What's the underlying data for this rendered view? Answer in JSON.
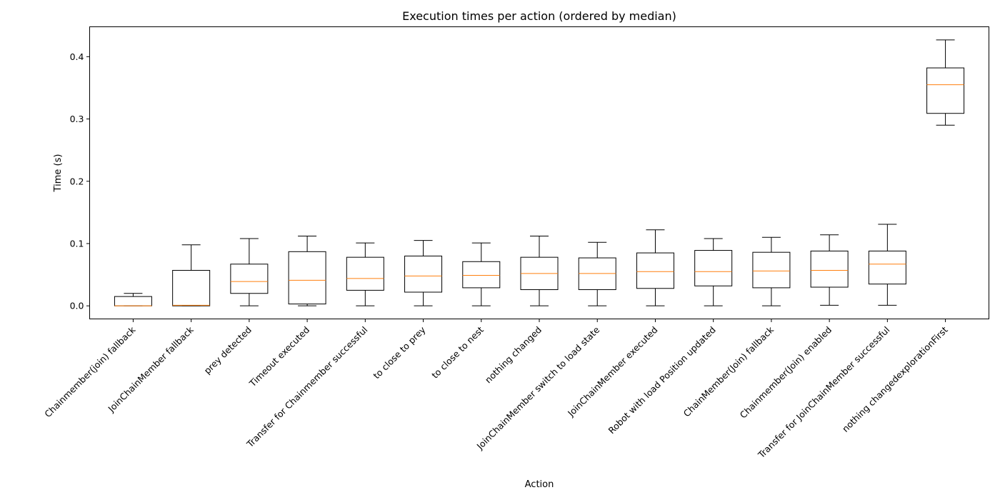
{
  "chart_data": {
    "type": "box",
    "title": "Execution times per action (ordered by median)",
    "xlabel": "Action",
    "ylabel": "Time (s)",
    "ylim": [
      -0.021,
      0.448
    ],
    "yticks": [
      "0.0",
      "0.1",
      "0.2",
      "0.3",
      "0.4"
    ],
    "grid": false,
    "colors": {
      "box": "#000000",
      "median": "#ff7f0e",
      "background": "#ffffff"
    },
    "categories": [
      "Chainmember(join) fallback",
      "JoinChainMember fallback",
      "prey detected",
      "Timeout executed",
      "Transfer for Chainmember successful",
      "to close to prey",
      "to close to nest",
      "nothing changed",
      "JoinChainMember switch to load state",
      "JoinChainMember executed",
      "Robot with load Position updated",
      "ChainMember(Join) fallback",
      "Chainmember(Join) enabled",
      "Transfer for JoinChainMember successful",
      "nothing changedexplorationFirst"
    ],
    "boxes": [
      {
        "whisker_low": 0.0,
        "q1": 0.0,
        "median": 0.0,
        "q3": 0.015,
        "whisker_high": 0.02
      },
      {
        "whisker_low": 0.0,
        "q1": 0.0,
        "median": 0.001,
        "q3": 0.057,
        "whisker_high": 0.098
      },
      {
        "whisker_low": 0.0,
        "q1": 0.02,
        "median": 0.039,
        "q3": 0.067,
        "whisker_high": 0.108
      },
      {
        "whisker_low": 0.0,
        "q1": 0.003,
        "median": 0.041,
        "q3": 0.087,
        "whisker_high": 0.112
      },
      {
        "whisker_low": 0.0,
        "q1": 0.025,
        "median": 0.044,
        "q3": 0.078,
        "whisker_high": 0.101
      },
      {
        "whisker_low": 0.0,
        "q1": 0.022,
        "median": 0.048,
        "q3": 0.08,
        "whisker_high": 0.105
      },
      {
        "whisker_low": 0.0,
        "q1": 0.029,
        "median": 0.049,
        "q3": 0.071,
        "whisker_high": 0.101
      },
      {
        "whisker_low": 0.0,
        "q1": 0.026,
        "median": 0.052,
        "q3": 0.078,
        "whisker_high": 0.112
      },
      {
        "whisker_low": 0.0,
        "q1": 0.026,
        "median": 0.052,
        "q3": 0.077,
        "whisker_high": 0.102
      },
      {
        "whisker_low": 0.0,
        "q1": 0.028,
        "median": 0.055,
        "q3": 0.085,
        "whisker_high": 0.122
      },
      {
        "whisker_low": 0.0,
        "q1": 0.032,
        "median": 0.055,
        "q3": 0.089,
        "whisker_high": 0.108
      },
      {
        "whisker_low": 0.0,
        "q1": 0.029,
        "median": 0.056,
        "q3": 0.086,
        "whisker_high": 0.11
      },
      {
        "whisker_low": 0.001,
        "q1": 0.03,
        "median": 0.057,
        "q3": 0.088,
        "whisker_high": 0.114
      },
      {
        "whisker_low": 0.001,
        "q1": 0.035,
        "median": 0.067,
        "q3": 0.088,
        "whisker_high": 0.131
      },
      {
        "whisker_low": 0.29,
        "q1": 0.309,
        "median": 0.355,
        "q3": 0.382,
        "whisker_high": 0.427
      }
    ]
  }
}
